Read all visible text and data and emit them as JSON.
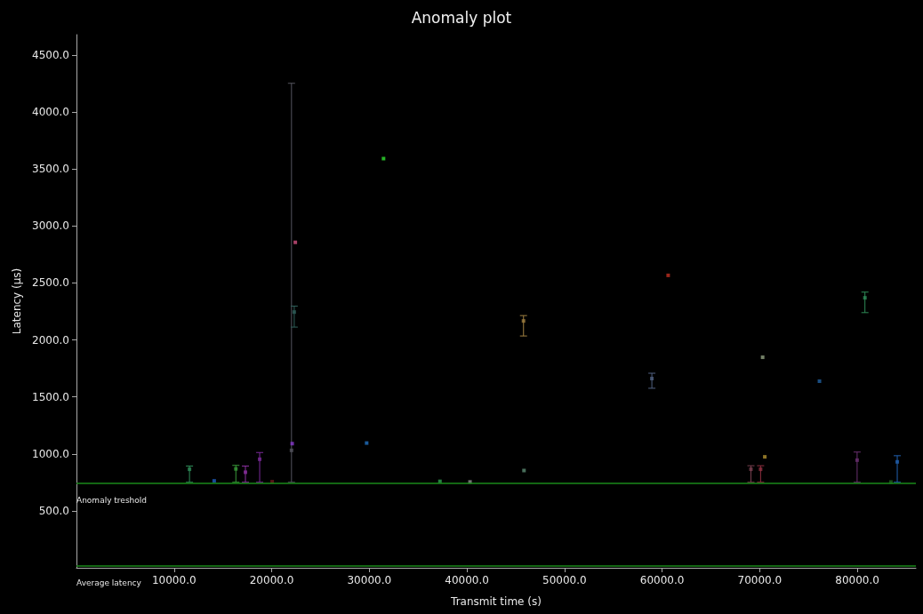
{
  "chart_data": {
    "type": "scatter",
    "title": "Anomaly plot",
    "xlabel": "Transmit time (s)",
    "ylabel": "Latency (µs)",
    "x": [
      11580,
      14110,
      16330,
      17310,
      18770,
      20050,
      22030,
      22310,
      22100,
      22420,
      29730,
      31460,
      37240,
      40320,
      45800,
      45850,
      58950,
      60620,
      69100,
      70090,
      70300,
      70520,
      76120,
      79980,
      80780,
      83440,
      84090
    ],
    "values": [
      865,
      763,
      868,
      839,
      953,
      756,
      1031,
      2245,
      1090,
      2857,
      1095,
      3592,
      759,
      754,
      2167,
      854,
      1661,
      2567,
      865,
      865,
      1848,
      974,
      1638,
      945,
      2370,
      753,
      930
    ],
    "errors": [
      [
        751,
        893
      ],
      null,
      [
        751,
        899
      ],
      [
        751,
        893
      ],
      [
        751,
        1012
      ],
      null,
      [
        751,
        4253
      ],
      [
        2113,
        2297
      ],
      null,
      null,
      null,
      null,
      null,
      null,
      [
        2035,
        2214
      ],
      null,
      [
        1576,
        1708
      ],
      null,
      [
        751,
        896
      ],
      [
        751,
        896
      ],
      null,
      null,
      null,
      [
        751,
        1016
      ],
      [
        2240,
        2420
      ],
      null,
      [
        751,
        984
      ]
    ],
    "colors": [
      "#2e8b57",
      "#1f5fbf",
      "#3a9a3a",
      "#8b2fa0",
      "#7b2a9a",
      "#6b1a1a",
      "#55555f",
      "#2f5f5a",
      "#8a3ad0",
      "#d05080",
      "#2070c0",
      "#30e030",
      "#30a050",
      "#909090",
      "#a08040",
      "#5a8a70",
      "#506080",
      "#c03020",
      "#7a4050",
      "#903040",
      "#90a080",
      "#b09030",
      "#2060a0",
      "#6a3070",
      "#2e8b57",
      "#206020",
      "#2060b0"
    ],
    "xlim": [
      0,
      86000
    ],
    "ylim": [
      0,
      4680
    ],
    "xticks": [
      {
        "value": 10000,
        "label": "10000.0"
      },
      {
        "value": 20000,
        "label": "20000.0"
      },
      {
        "value": 30000,
        "label": "30000.0"
      },
      {
        "value": 40000,
        "label": "40000.0"
      },
      {
        "value": 50000,
        "label": "50000.0"
      },
      {
        "value": 60000,
        "label": "60000.0"
      },
      {
        "value": 70000,
        "label": "70000.0"
      },
      {
        "value": 80000,
        "label": "80000.0"
      }
    ],
    "yticks": [
      {
        "value": 500,
        "label": "500.0"
      },
      {
        "value": 1000,
        "label": "1000.0"
      },
      {
        "value": 1500,
        "label": "1500.0"
      },
      {
        "value": 2000,
        "label": "2000.0"
      },
      {
        "value": 2500,
        "label": "2500.0"
      },
      {
        "value": 3000,
        "label": "3000.0"
      },
      {
        "value": 3500,
        "label": "3500.0"
      },
      {
        "value": 4000,
        "label": "4000.0"
      },
      {
        "value": 4500,
        "label": "4500.0"
      }
    ],
    "ref_lines": [
      {
        "axis": "y",
        "value": 745,
        "label": "Anomaly treshold",
        "color": "#1a8a1a"
      },
      {
        "axis": "y",
        "value": 20,
        "label": "Average latency",
        "color": "#1a8a1a"
      }
    ],
    "grid": false,
    "legend": false,
    "marker": "square"
  }
}
